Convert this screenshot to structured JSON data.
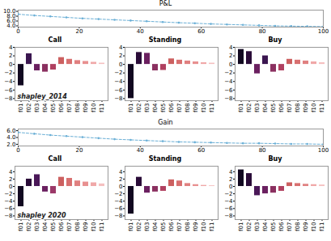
{
  "chart_data": [
    {
      "type": "line",
      "title": "P&L",
      "x": [
        0,
        5.263157894736842,
        10.526315789473685,
        15.789473684210526,
        21.05263157894737,
        26.31578947368421,
        31.57894736842105,
        36.84210526315789,
        42.10526315789474,
        47.36842105263158,
        52.63157894736842,
        57.89473684210526,
        63.1578947368421,
        68.42105263157895,
        73.68421052631578,
        78.94736842105263,
        84.21052631578947,
        89.47368421052632,
        94.73684210526316,
        100
      ],
      "values": [
        8.8,
        8.3,
        7.9,
        7.5,
        7.1,
        6.8,
        6.5,
        6.2,
        5.9,
        5.6,
        5.3,
        5.1,
        4.8,
        4.6,
        4.4,
        4.2,
        4.0,
        3.9,
        3.8,
        3.7
      ],
      "color": "#6aafd6",
      "line_style": "dashed",
      "marker": "dot",
      "xlim": [
        0,
        100
      ],
      "xticks": [
        0,
        20,
        40,
        60,
        80,
        100
      ],
      "ylim": [
        3.5,
        10.5
      ],
      "yticks": [
        4,
        6,
        8,
        10
      ],
      "grid": false
    },
    {
      "type": "bar",
      "title": "Call",
      "categories": [
        "f01",
        "f02",
        "f03",
        "f04",
        "f05",
        "f06",
        "f07",
        "f08",
        "f09",
        "f10",
        "f11"
      ],
      "values": [
        -5.0,
        2.5,
        -1.5,
        -1.8,
        -1.3,
        1.6,
        1.2,
        0.9,
        0.7,
        0.5,
        0.3
      ],
      "colors": [
        "#110820",
        "#3b1650",
        "#6b2060",
        "#8b3060",
        "#b04060",
        "#cc6060",
        "#d87070",
        "#e08080",
        "#e89090",
        "#f0a8a8",
        "#f5c0c0"
      ],
      "ylim": [
        -8.5,
        4.0
      ],
      "yticks": [
        -8,
        -6,
        -4,
        -2,
        0,
        2,
        4
      ],
      "grid": false,
      "annotations": [
        "shapley_2014"
      ]
    },
    {
      "type": "bar",
      "title": "Standing",
      "categories": [
        "f01",
        "f02",
        "f03",
        "f04",
        "f05",
        "f06",
        "f07",
        "f08",
        "f09",
        "f10",
        "f11"
      ],
      "values": [
        -8.0,
        2.8,
        2.6,
        -1.5,
        -1.4,
        1.3,
        1.0,
        0.8,
        0.6,
        0.4,
        0.3
      ],
      "colors": [
        "#110820",
        "#2a0c38",
        "#6b2060",
        "#8b3060",
        "#b04060",
        "#cc6060",
        "#d87070",
        "#e08080",
        "#e89090",
        "#f0a8a8",
        "#f5c0c0"
      ],
      "ylim": [
        -8.5,
        4.0
      ],
      "yticks": [
        -8,
        -6,
        -4,
        -2,
        0,
        2,
        4
      ],
      "grid": false
    },
    {
      "type": "bar",
      "title": "Buy",
      "categories": [
        "f01",
        "f02",
        "f03",
        "f04",
        "f05",
        "f06",
        "f07",
        "f08",
        "f09",
        "f10",
        "f11"
      ],
      "values": [
        3.5,
        3.0,
        -2.2,
        2.0,
        -1.8,
        -1.5,
        1.2,
        1.0,
        0.8,
        0.6,
        0.4
      ],
      "colors": [
        "#110820",
        "#2a0c38",
        "#6b2060",
        "#3b1650",
        "#8b3060",
        "#b04060",
        "#cc6060",
        "#d87070",
        "#e08080",
        "#f0a8a8",
        "#f5c0c0"
      ],
      "ylim": [
        -8.5,
        4.0
      ],
      "yticks": [
        -8,
        -6,
        -4,
        -2,
        0,
        2,
        4
      ],
      "grid": false
    },
    {
      "type": "line",
      "title": "Gain",
      "x": [
        0,
        5.263157894736842,
        10.526315789473685,
        15.789473684210526,
        21.05263157894737,
        26.31578947368421,
        31.57894736842105,
        36.84210526315789,
        42.10526315789474,
        47.36842105263158,
        52.63157894736842,
        57.89473684210526,
        63.1578947368421,
        68.42105263157895,
        73.68421052631578,
        78.94736842105263,
        84.21052631578947,
        89.47368421052632,
        94.73684210526316,
        100
      ],
      "values": [
        5.5,
        5.1,
        4.7,
        4.4,
        4.1,
        3.8,
        3.5,
        3.3,
        3.1,
        2.9,
        2.7,
        2.6,
        2.5,
        2.4,
        2.3,
        2.3,
        2.2,
        2.1,
        2.1,
        2.0
      ],
      "color": "#6aafd6",
      "line_style": "dashed",
      "marker": "dot",
      "xlim": [
        0,
        100
      ],
      "xticks": [
        0,
        20,
        40,
        60,
        80,
        100
      ],
      "ylim": [
        1.5,
        6.5
      ],
      "yticks": [
        2,
        4,
        6
      ],
      "grid": false
    },
    {
      "type": "bar",
      "title": "Call",
      "categories": [
        "f01",
        "f02",
        "f03",
        "f04",
        "f05",
        "f06",
        "f07",
        "f08",
        "f09",
        "f10",
        "f11"
      ],
      "values": [
        -5.5,
        2.0,
        3.2,
        -1.5,
        -2.0,
        2.5,
        2.2,
        1.5,
        1.2,
        1.0,
        0.7
      ],
      "colors": [
        "#110820",
        "#2a0c38",
        "#4a1858",
        "#6b2060",
        "#9b3868",
        "#cc6060",
        "#d87070",
        "#e08080",
        "#e89090",
        "#f0a8a8",
        "#f5c0c0"
      ],
      "ylim": [
        -9.0,
        5.5
      ],
      "yticks": [
        -8,
        -6,
        -4,
        -2,
        0,
        2,
        4
      ],
      "grid": false,
      "annotations": [
        "shapley 2020"
      ]
    },
    {
      "type": "bar",
      "title": "Standing",
      "categories": [
        "f01",
        "f02",
        "f03",
        "f04",
        "f05",
        "f06",
        "f07",
        "f08",
        "f09",
        "f10",
        "f11"
      ],
      "values": [
        -7.5,
        2.5,
        -1.8,
        -1.5,
        -1.3,
        1.8,
        1.5,
        0.8,
        0.5,
        0.3,
        0.2
      ],
      "colors": [
        "#110820",
        "#2a0c38",
        "#6b2060",
        "#8b3060",
        "#b04060",
        "#cc6060",
        "#d87070",
        "#e08080",
        "#e89090",
        "#f0a8a8",
        "#f5c0c0"
      ],
      "ylim": [
        -9.0,
        5.5
      ],
      "yticks": [
        -8,
        -6,
        -4,
        -2,
        0,
        2,
        4
      ],
      "grid": false
    },
    {
      "type": "bar",
      "title": "Buy",
      "categories": [
        "f01",
        "f02",
        "f03",
        "f04",
        "f05",
        "f06",
        "f07",
        "f08",
        "f09",
        "f10",
        "f11"
      ],
      "values": [
        4.5,
        3.5,
        -2.5,
        -2.0,
        -1.8,
        -1.3,
        1.0,
        0.8,
        0.6,
        0.5,
        0.4
      ],
      "colors": [
        "#110820",
        "#2a0c38",
        "#4a1858",
        "#6b2060",
        "#8b3060",
        "#b04060",
        "#cc6060",
        "#d87070",
        "#e08080",
        "#f0a8a8",
        "#f5c0c0"
      ],
      "ylim": [
        -9.0,
        5.5
      ],
      "yticks": [
        -8,
        -6,
        -4,
        -2,
        0,
        2,
        4
      ],
      "grid": false
    }
  ]
}
